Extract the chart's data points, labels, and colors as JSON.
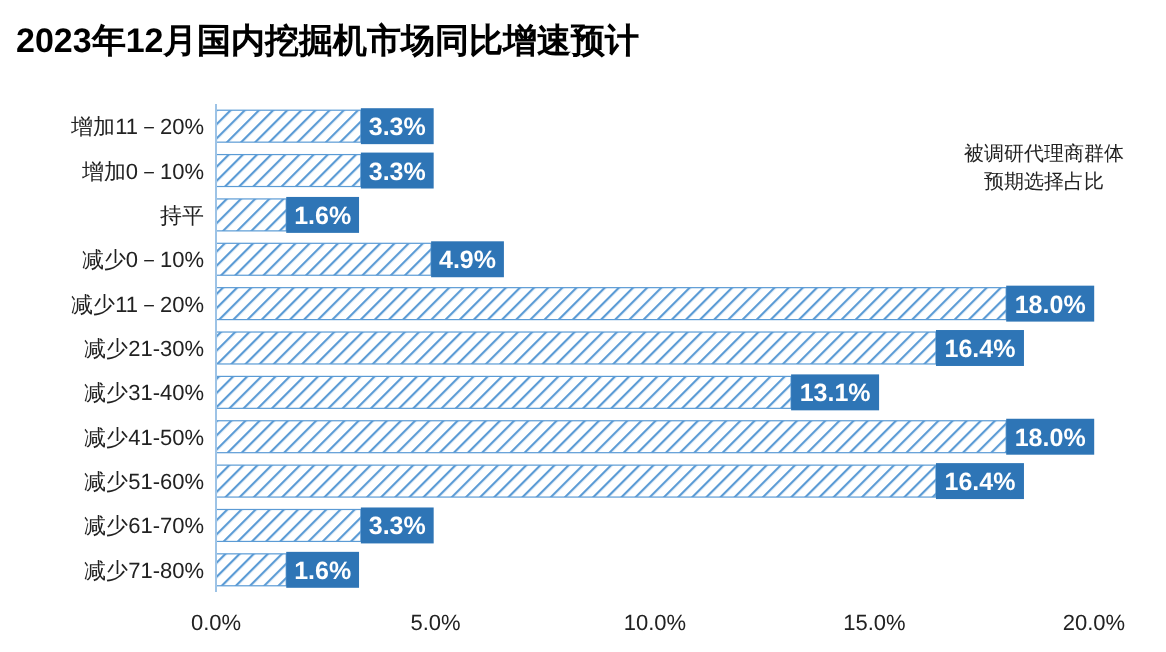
{
  "chart_data": {
    "type": "bar",
    "orientation": "horizontal",
    "title": "2023年12月国内挖掘机市场同比增速预计",
    "categories": [
      "增加11－20%",
      "增加0－10%",
      "持平",
      "减少0－10%",
      "减少11－20%",
      "减少21-30%",
      "减少31-40%",
      "减少41-50%",
      "减少51-60%",
      "减少61-70%",
      "减少71-80%"
    ],
    "values": [
      3.3,
      3.3,
      1.6,
      4.9,
      18.0,
      16.4,
      13.1,
      18.0,
      16.4,
      3.3,
      1.6
    ],
    "value_labels": [
      "3.3%",
      "3.3%",
      "1.6%",
      "4.9%",
      "18.0%",
      "16.4%",
      "13.1%",
      "18.0%",
      "16.4%",
      "3.3%",
      "1.6%"
    ],
    "color": "#5b9bd5",
    "xlim": [
      0,
      20
    ],
    "xticks": [
      {
        "value": 0,
        "label": "0.0%"
      },
      {
        "value": 5,
        "label": "5.0%"
      },
      {
        "value": 10,
        "label": "10.0%"
      },
      {
        "value": 15,
        "label": "15.0%"
      },
      {
        "value": 20,
        "label": "20.0%"
      }
    ],
    "annotations": [
      "被调研代理商群体",
      "预期选择占比"
    ],
    "grid": false
  }
}
